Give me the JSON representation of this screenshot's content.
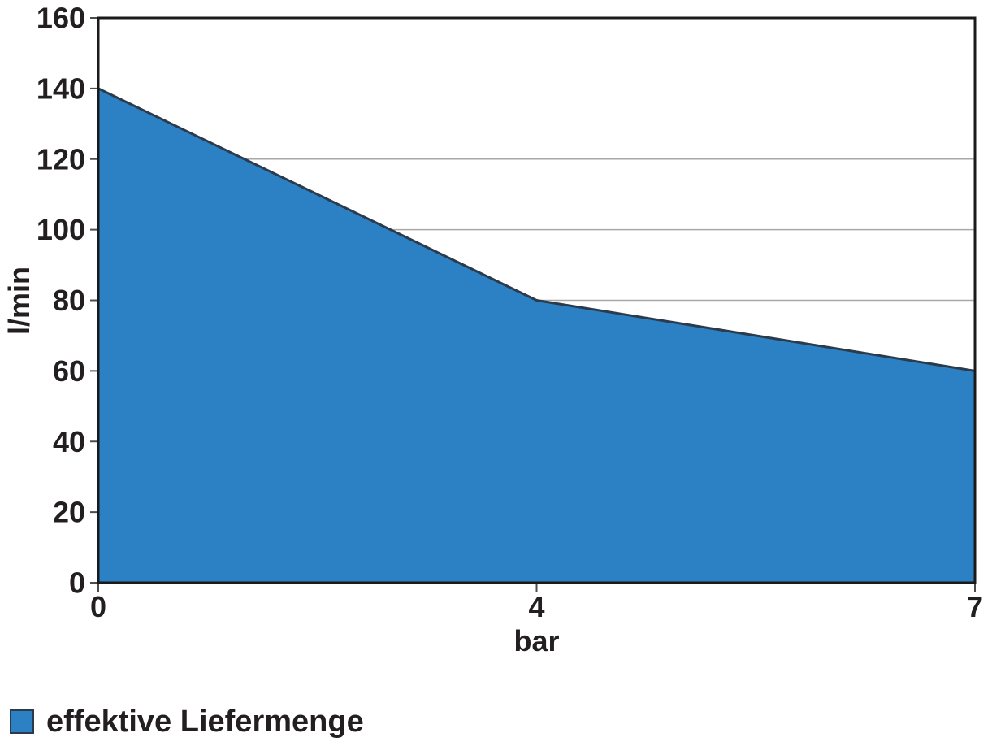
{
  "chart_data": {
    "type": "area",
    "x": [
      0,
      4,
      7
    ],
    "x_axis_style": "category-evenly-spaced",
    "series": [
      {
        "name": "effektive Liefermenge",
        "values": [
          140,
          80,
          60
        ]
      }
    ],
    "title": "",
    "xlabel": "bar",
    "ylabel": "l/min",
    "ylim": [
      0,
      160
    ],
    "yticks": [
      0,
      20,
      40,
      60,
      80,
      100,
      120,
      140,
      160
    ],
    "xticks": [
      0,
      4,
      7
    ],
    "visible_gridlines": [
      80,
      100,
      120
    ],
    "grid": "horizontal-only",
    "legend_position": "bottom-left",
    "colors": {
      "area_fill": "#2c80c4",
      "area_stroke": "#2b3b4b",
      "axis": "#1a1a1a",
      "gridline": "#a8a8a8",
      "tick": "#4d4d4d",
      "text": "#231f20"
    }
  },
  "legend": {
    "label": "effektive Liefermenge"
  }
}
